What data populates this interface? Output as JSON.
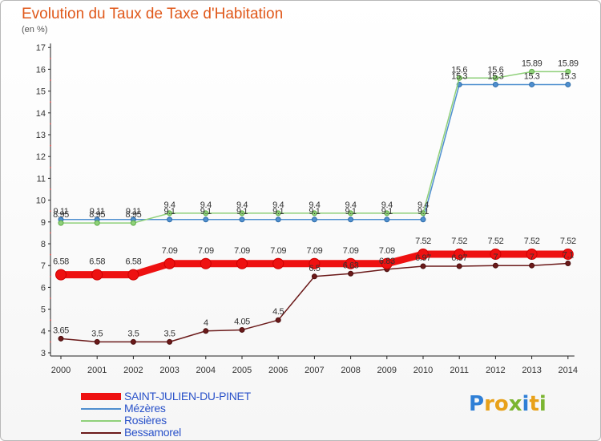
{
  "header": {
    "title": "Evolution du Taux de Taxe d'Habitation",
    "unit": "(en %)"
  },
  "brand": {
    "text": "Proxiti"
  },
  "chart_data": {
    "type": "line",
    "title": "Evolution du Taux de Taxe d'Habitation",
    "ylabel": "(en %)",
    "xlabel": "",
    "x": [
      "2000",
      "2001",
      "2002",
      "2003",
      "2004",
      "2005",
      "2006",
      "2007",
      "2008",
      "2009",
      "2010",
      "2011",
      "2012",
      "2013",
      "2014"
    ],
    "ylim": [
      3,
      17
    ],
    "yticks": [
      3,
      4,
      5,
      6,
      7,
      8,
      9,
      10,
      11,
      12,
      13,
      14,
      15,
      16,
      17
    ],
    "grid": false,
    "legend": "bottom",
    "series": [
      {
        "name": "SAINT-JULIEN-DU-PINET",
        "color": "#ee1111",
        "values": [
          6.58,
          6.58,
          6.58,
          7.09,
          7.09,
          7.09,
          7.09,
          7.09,
          7.09,
          7.09,
          7.52,
          7.52,
          7.52,
          7.52,
          7.52
        ],
        "labels": [
          "6.58",
          "6.58",
          "6.58",
          "7.09",
          "7.09",
          "7.09",
          "7.09",
          "7.09",
          "7.09",
          "7.09",
          "7.52",
          "7.52",
          "7.52",
          "7.52",
          "7.52"
        ]
      },
      {
        "name": "Mézères",
        "color": "#4f8fcf",
        "values": [
          9.11,
          9.11,
          9.11,
          9.11,
          9.11,
          9.11,
          9.11,
          9.11,
          9.11,
          9.11,
          9.11,
          15.3,
          15.3,
          15.3,
          15.3
        ],
        "labels": [
          "9.11",
          "9.11",
          "9.11",
          "9.1",
          "9.1",
          "9.1",
          "9.1",
          "9.1",
          "9.1",
          "9.1",
          "9.1",
          "15.3",
          "15.3",
          "15.3",
          "15.3"
        ]
      },
      {
        "name": "Rosières",
        "color": "#8fd07a",
        "values": [
          8.95,
          8.95,
          8.95,
          9.4,
          9.4,
          9.4,
          9.4,
          9.4,
          9.4,
          9.4,
          9.4,
          15.6,
          15.6,
          15.89,
          15.89
        ],
        "labels": [
          "8.95",
          "8.95",
          "8.95",
          "9.4",
          "9.4",
          "9.4",
          "9.4",
          "9.4",
          "9.4",
          "9.4",
          "9.4",
          "15.6",
          "15.6",
          "15.89",
          "15.89"
        ]
      },
      {
        "name": "Bessamorel",
        "color": "#6b1a1a",
        "values": [
          3.65,
          3.5,
          3.5,
          3.5,
          4.0,
          4.05,
          4.5,
          6.5,
          6.63,
          6.83,
          6.97,
          6.97,
          7.0,
          7.0,
          7.1
        ],
        "labels": [
          "3.65",
          "3.5",
          "3.5",
          "3.5",
          "4",
          "4.05",
          "4.5",
          "6.5",
          "6.63",
          "6.83",
          "6.97",
          "6.97",
          "7",
          "7",
          "7.1"
        ]
      }
    ]
  }
}
